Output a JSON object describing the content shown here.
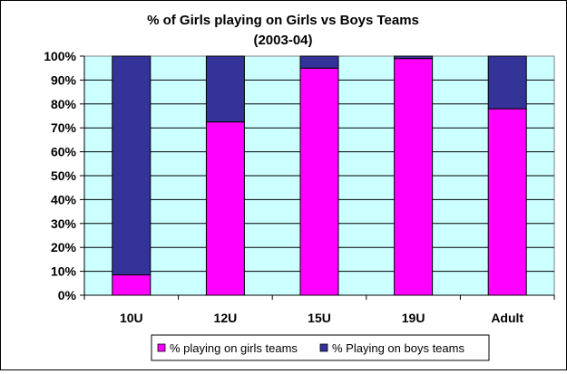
{
  "chart_data": {
    "type": "bar",
    "stacked": true,
    "title": "% of Girls playing on Girls vs Boys Teams",
    "subtitle": "(2003-04)",
    "categories": [
      "10U",
      "12U",
      "15U",
      "19U",
      "Adult"
    ],
    "series": [
      {
        "name": "% playing on girls teams",
        "color": "#ff00ff",
        "values": [
          8.5,
          72.5,
          95,
          99,
          78
        ]
      },
      {
        "name": "% Playing on boys teams",
        "color": "#333399",
        "values": [
          91.5,
          27.5,
          5,
          1,
          22
        ]
      }
    ],
    "ylim": [
      0,
      100
    ],
    "yticks": [
      {
        "value": 0,
        "label": "0%"
      },
      {
        "value": 10,
        "label": "10%"
      },
      {
        "value": 20,
        "label": "20%"
      },
      {
        "value": 30,
        "label": "30%"
      },
      {
        "value": 40,
        "label": "40%"
      },
      {
        "value": 50,
        "label": "50%"
      },
      {
        "value": 60,
        "label": "60%"
      },
      {
        "value": 70,
        "label": "70%"
      },
      {
        "value": 80,
        "label": "80%"
      },
      {
        "value": 90,
        "label": "90%"
      },
      {
        "value": 100,
        "label": "100%"
      }
    ],
    "grid": true,
    "plot_background": "#ccffff",
    "legend_position": "bottom"
  }
}
